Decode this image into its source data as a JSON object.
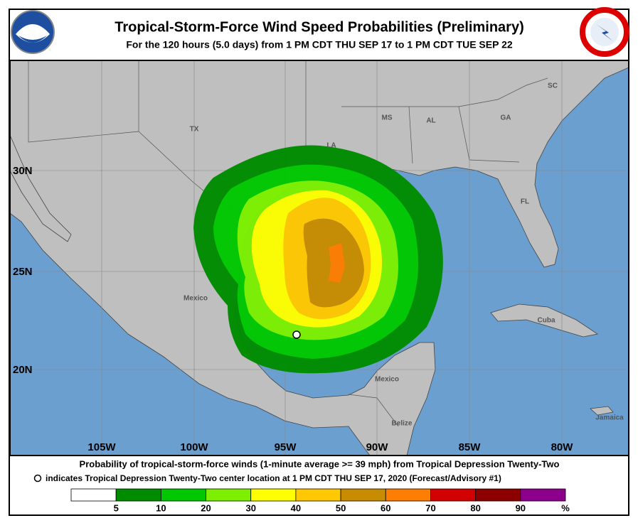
{
  "header": {
    "title": "Tropical-Storm-Force Wind Speed Probabilities (Preliminary)",
    "subtitle": "For the 120 hours (5.0 days) from 1 PM CDT THU SEP 17 to 1 PM CDT TUE SEP 22"
  },
  "map": {
    "places": [
      "TX",
      "LA",
      "MS",
      "AL",
      "GA",
      "SC",
      "FL",
      "Mexico",
      "Mexico",
      "Cuba",
      "Belize",
      "Jamaica"
    ],
    "lat_labels": [
      "30N",
      "25N",
      "20N"
    ],
    "lon_labels": [
      "105W",
      "100W",
      "95W",
      "90W",
      "85W",
      "80W"
    ]
  },
  "footer": {
    "line1": "Probability of tropical-storm-force winds (1-minute average >= 39 mph) from Tropical Depression Twenty-Two",
    "line2": "indicates Tropical Depression Twenty-Two center location at 1 PM CDT THU SEP 17, 2020 (Forecast/Advisory #1)"
  },
  "legend": {
    "colors": [
      "#ffffff",
      "#008c00",
      "#00c800",
      "#7cf000",
      "#ffff00",
      "#ffc800",
      "#c88c00",
      "#ff7d00",
      "#d20000",
      "#8c0000",
      "#8c008c"
    ],
    "ticks": [
      5,
      10,
      20,
      30,
      40,
      50,
      60,
      70,
      80,
      90
    ],
    "unit": "%"
  }
}
